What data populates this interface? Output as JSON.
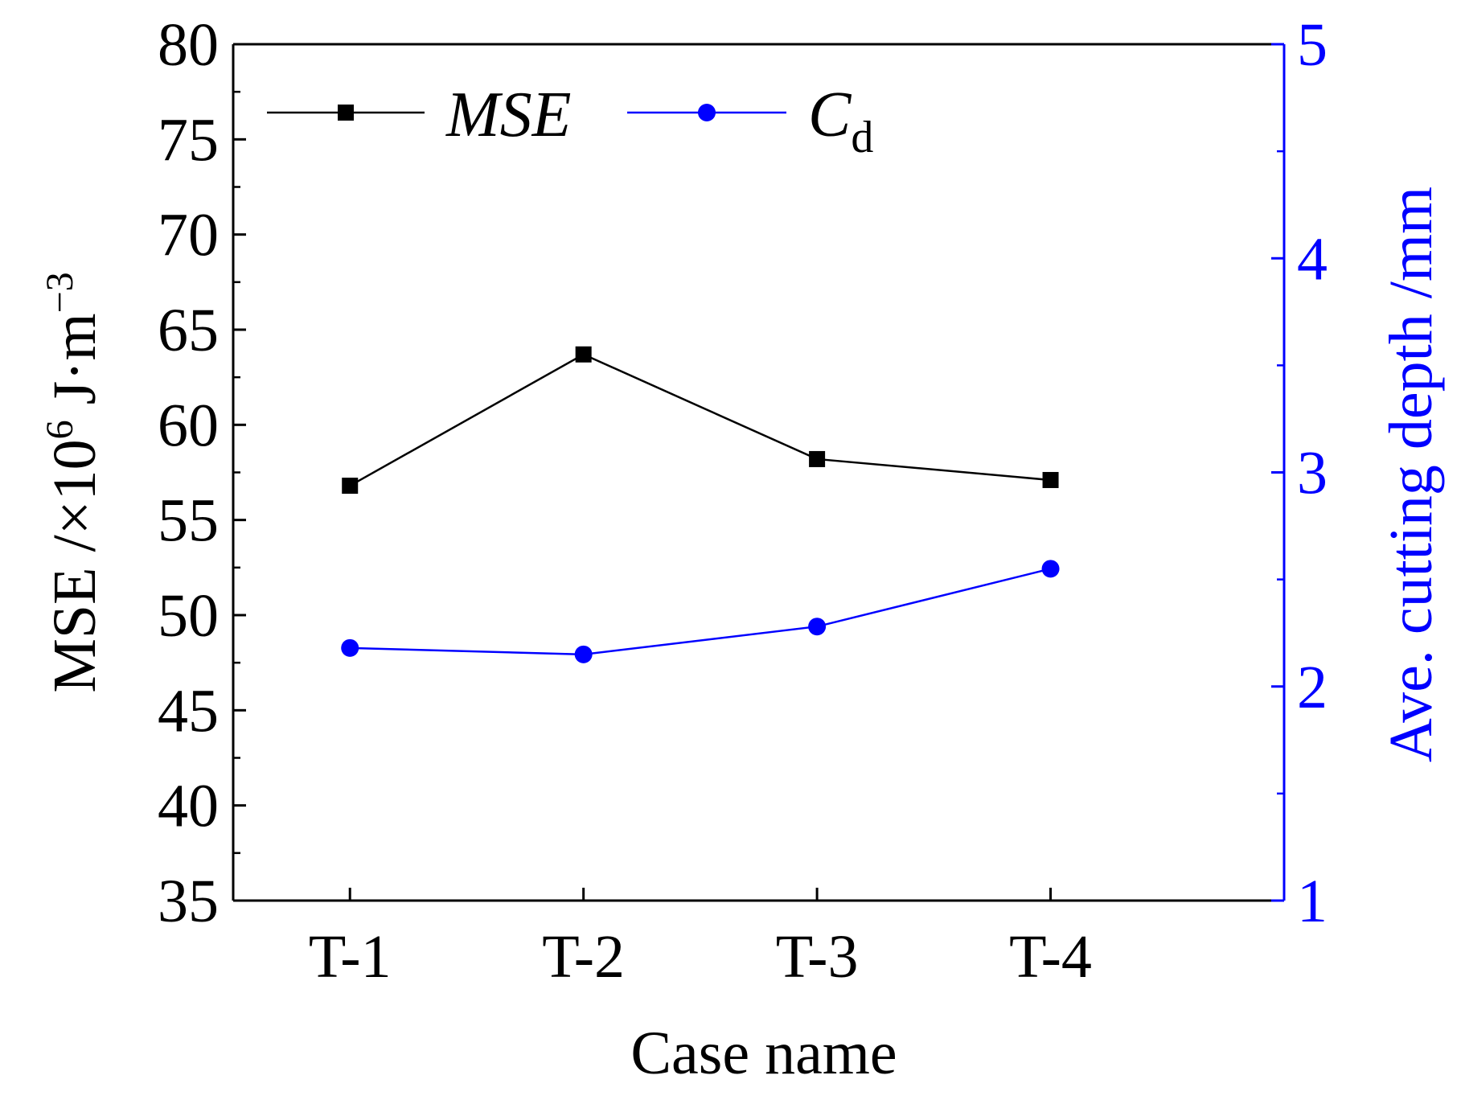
{
  "chart_data": {
    "type": "line",
    "title": "",
    "categories": [
      "T-1",
      "T-2",
      "T-3",
      "T-4"
    ],
    "xlabel": "Case name",
    "ylabel": {
      "main": "MSE /×10",
      "exp": "6",
      "unit": " J·m",
      "unit_exp": "−3"
    },
    "y2label": "Ave. cutting depth /mm",
    "ylim": [
      35,
      80
    ],
    "y2lim": [
      1,
      5
    ],
    "yticks": [
      35,
      40,
      45,
      50,
      55,
      60,
      65,
      70,
      75,
      80
    ],
    "y2ticks": [
      1,
      2,
      3,
      4,
      5
    ],
    "legend_position": "top-left",
    "series": [
      {
        "name": "MSE",
        "legend_main": "MSE",
        "legend_sub": "",
        "axis": "left",
        "color": "#000000",
        "marker": "square",
        "values": [
          56.8,
          63.7,
          58.2,
          57.1
        ]
      },
      {
        "name": "Cd",
        "legend_main": "C",
        "legend_sub": "d",
        "axis": "right",
        "color": "#0000ff",
        "marker": "circle",
        "values": [
          2.18,
          2.15,
          2.28,
          2.55
        ]
      }
    ]
  }
}
